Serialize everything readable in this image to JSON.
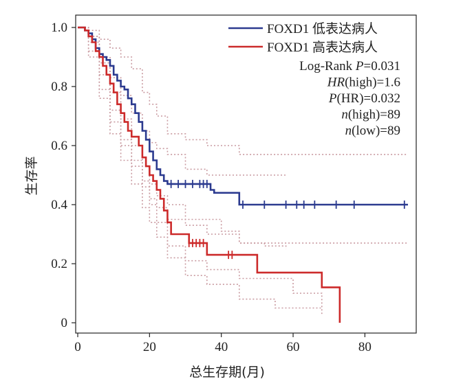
{
  "chart_data": {
    "type": "line",
    "xlabel": "总生存期(月)",
    "ylabel": "生存率",
    "xlim": [
      0,
      92
    ],
    "ylim": [
      0,
      1.0
    ],
    "x_ticks": [
      0,
      20,
      40,
      60,
      80
    ],
    "y_ticks": [
      0,
      0.2,
      0.4,
      0.6,
      0.8,
      1.0
    ],
    "x_tick_labels": [
      "0",
      "20",
      "40",
      "60",
      "80"
    ],
    "y_tick_labels": [
      "0",
      "0.2",
      "0.4",
      "0.6",
      "0.8",
      "1.0"
    ],
    "grid": false,
    "legend_position": "top-right",
    "series": [
      {
        "name": "FOXD1 低表达病人",
        "color": "#2b3a8f",
        "step": true,
        "points": [
          [
            0,
            1.0
          ],
          [
            2,
            0.99
          ],
          [
            3,
            0.98
          ],
          [
            4,
            0.96
          ],
          [
            5,
            0.93
          ],
          [
            6,
            0.91
          ],
          [
            7,
            0.9
          ],
          [
            8,
            0.89
          ],
          [
            9,
            0.87
          ],
          [
            10,
            0.84
          ],
          [
            11,
            0.82
          ],
          [
            12,
            0.8
          ],
          [
            13,
            0.79
          ],
          [
            14,
            0.76
          ],
          [
            15,
            0.74
          ],
          [
            16,
            0.71
          ],
          [
            17,
            0.68
          ],
          [
            18,
            0.65
          ],
          [
            19,
            0.62
          ],
          [
            20,
            0.58
          ],
          [
            21,
            0.55
          ],
          [
            22,
            0.52
          ],
          [
            23,
            0.5
          ],
          [
            24,
            0.48
          ],
          [
            25,
            0.47
          ],
          [
            37,
            0.45
          ],
          [
            38,
            0.44
          ],
          [
            45,
            0.4
          ],
          [
            92,
            0.4
          ]
        ],
        "censor_x": [
          26,
          28,
          30,
          32,
          34,
          35,
          36,
          46,
          52,
          58,
          61,
          63,
          66,
          72,
          77,
          91
        ]
      },
      {
        "name": "FOXD1 高表达病人",
        "color": "#cc2a2a",
        "step": true,
        "points": [
          [
            0,
            1.0
          ],
          [
            2,
            0.99
          ],
          [
            3,
            0.97
          ],
          [
            4,
            0.95
          ],
          [
            5,
            0.92
          ],
          [
            6,
            0.9
          ],
          [
            7,
            0.87
          ],
          [
            8,
            0.84
          ],
          [
            9,
            0.81
          ],
          [
            10,
            0.78
          ],
          [
            11,
            0.74
          ],
          [
            12,
            0.71
          ],
          [
            13,
            0.68
          ],
          [
            14,
            0.65
          ],
          [
            15,
            0.63
          ],
          [
            17,
            0.6
          ],
          [
            18,
            0.56
          ],
          [
            19,
            0.53
          ],
          [
            20,
            0.5
          ],
          [
            21,
            0.48
          ],
          [
            22,
            0.45
          ],
          [
            23,
            0.42
          ],
          [
            24,
            0.38
          ],
          [
            25,
            0.34
          ],
          [
            26,
            0.3
          ],
          [
            31,
            0.27
          ],
          [
            36,
            0.23
          ],
          [
            44,
            0.23
          ],
          [
            50,
            0.17
          ],
          [
            68,
            0.12
          ],
          [
            73,
            0
          ]
        ],
        "censor_x": [
          31,
          32,
          33,
          34,
          35,
          42,
          43
        ]
      }
    ],
    "confidence_bands": {
      "color": "#c99aa0",
      "style": "dotted",
      "lines": [
        [
          [
            0,
            1.0
          ],
          [
            3,
            0.99
          ],
          [
            6,
            0.96
          ],
          [
            9,
            0.93
          ],
          [
            12,
            0.9
          ],
          [
            15,
            0.86
          ],
          [
            18,
            0.78
          ],
          [
            20,
            0.74
          ],
          [
            22,
            0.7
          ],
          [
            25,
            0.64
          ],
          [
            30,
            0.62
          ],
          [
            36,
            0.6
          ],
          [
            45,
            0.57
          ],
          [
            92,
            0.57
          ]
        ],
        [
          [
            0,
            1.0
          ],
          [
            3,
            0.97
          ],
          [
            6,
            0.9
          ],
          [
            9,
            0.83
          ],
          [
            12,
            0.77
          ],
          [
            15,
            0.71
          ],
          [
            18,
            0.65
          ],
          [
            20,
            0.61
          ],
          [
            22,
            0.59
          ],
          [
            25,
            0.57
          ],
          [
            30,
            0.52
          ],
          [
            36,
            0.5
          ],
          [
            45,
            0.5
          ],
          [
            58,
            0.5
          ]
        ],
        [
          [
            0,
            1.0
          ],
          [
            3,
            0.97
          ],
          [
            6,
            0.88
          ],
          [
            9,
            0.78
          ],
          [
            12,
            0.69
          ],
          [
            15,
            0.6
          ],
          [
            18,
            0.53
          ],
          [
            20,
            0.47
          ],
          [
            22,
            0.43
          ],
          [
            25,
            0.4
          ],
          [
            30,
            0.35
          ],
          [
            40,
            0.31
          ],
          [
            45,
            0.27
          ],
          [
            92,
            0.27
          ]
        ],
        [
          [
            0,
            1.0
          ],
          [
            3,
            0.95
          ],
          [
            6,
            0.84
          ],
          [
            9,
            0.72
          ],
          [
            12,
            0.62
          ],
          [
            15,
            0.55
          ],
          [
            18,
            0.48
          ],
          [
            20,
            0.42
          ],
          [
            22,
            0.39
          ],
          [
            25,
            0.35
          ],
          [
            30,
            0.33
          ],
          [
            36,
            0.3
          ],
          [
            45,
            0.27
          ],
          [
            52,
            0.26
          ],
          [
            58,
            0.25
          ]
        ],
        [
          [
            0,
            1.0
          ],
          [
            3,
            0.92
          ],
          [
            6,
            0.79
          ],
          [
            9,
            0.68
          ],
          [
            12,
            0.6
          ],
          [
            15,
            0.53
          ],
          [
            18,
            0.46
          ],
          [
            20,
            0.4
          ],
          [
            22,
            0.34
          ],
          [
            25,
            0.26
          ],
          [
            30,
            0.21
          ],
          [
            36,
            0.18
          ],
          [
            45,
            0.15
          ],
          [
            60,
            0.1
          ],
          [
            68,
            0.05
          ]
        ],
        [
          [
            0,
            1.0
          ],
          [
            3,
            0.9
          ],
          [
            6,
            0.76
          ],
          [
            9,
            0.64
          ],
          [
            12,
            0.55
          ],
          [
            15,
            0.47
          ],
          [
            18,
            0.39
          ],
          [
            20,
            0.34
          ],
          [
            22,
            0.29
          ],
          [
            25,
            0.22
          ],
          [
            30,
            0.16
          ],
          [
            36,
            0.13
          ],
          [
            45,
            0.08
          ],
          [
            55,
            0.05
          ],
          [
            68,
            0.03
          ]
        ]
      ]
    },
    "legend_stats": [
      {
        "key": "log-rank",
        "label": "Log-Rank ",
        "italic": "P",
        "value": "=0.031"
      },
      {
        "key": "hr",
        "italic": "HR",
        "label": "(high)",
        "value": "=1.6"
      },
      {
        "key": "p-hr",
        "italic": "P",
        "label": "(HR)",
        "value": "=0.032"
      },
      {
        "key": "n-high",
        "italic": "n",
        "label": "(high)",
        "value": "=89"
      },
      {
        "key": "n-low",
        "italic": "n",
        "label": "(low)",
        "value": "=89"
      }
    ]
  }
}
